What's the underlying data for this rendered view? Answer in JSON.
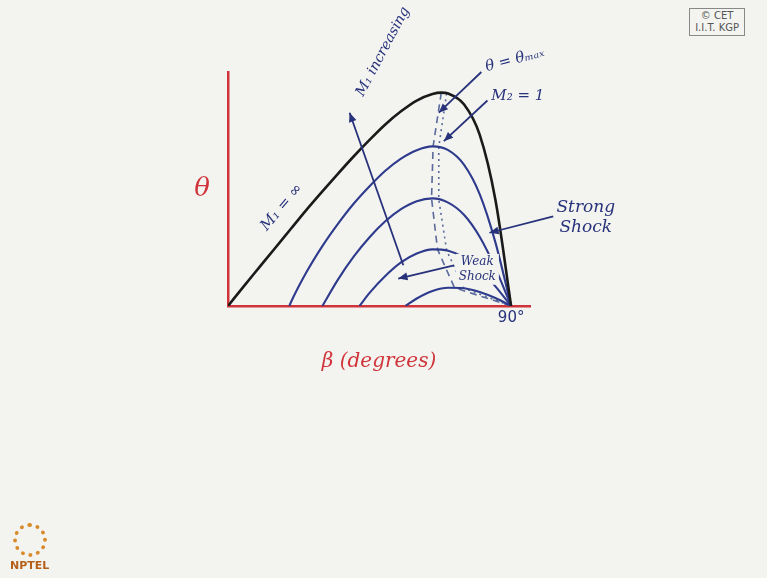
{
  "chart_data": {
    "type": "line",
    "xlabel": "β (degrees)",
    "ylabel": "θ",
    "xlim": [
      0,
      96
    ],
    "xticks": [
      {
        "value": 90,
        "label": "90°"
      }
    ],
    "ylim": [
      0,
      50
    ],
    "yticks": [],
    "tick_labels": "x",
    "grid": false,
    "series": [
      {
        "color": "#1a1a1a",
        "line_style": "solid",
        "x": [
          0,
          5,
          10,
          15,
          20,
          25,
          30,
          35,
          40,
          45,
          50,
          55,
          60,
          65,
          67.8,
          70,
          75,
          80,
          85,
          90
        ],
        "values": [
          0,
          4.2,
          8.3,
          12.4,
          16.5,
          20.6,
          24.5,
          28.3,
          32.0,
          35.5,
          38.8,
          41.6,
          43.9,
          45.3,
          45.6,
          45.4,
          43.1,
          36.6,
          22.7,
          0
        ]
      },
      {
        "color": "#2e3a8c",
        "line_style": "solid",
        "x": [
          19.5,
          20,
          25,
          30,
          35,
          40,
          45,
          50,
          55,
          60,
          65,
          70,
          75,
          80,
          85,
          90
        ],
        "values": [
          0,
          0.8,
          7.3,
          12.8,
          17.6,
          21.9,
          25.6,
          28.9,
          31.5,
          33.3,
          34.1,
          33.3,
          30.2,
          23.9,
          13.6,
          0
        ]
      },
      {
        "color": "#2e3a8c",
        "line_style": "solid",
        "x": [
          30,
          35,
          40,
          45,
          50,
          55,
          60,
          65,
          70,
          75,
          80,
          85,
          90
        ],
        "values": [
          0,
          5.7,
          10.6,
          14.7,
          18.1,
          20.7,
          22.4,
          23.0,
          22.1,
          19.5,
          14.8,
          8.1,
          0
        ]
      },
      {
        "color": "#2e3a8c",
        "line_style": "solid",
        "x": [
          41.8,
          45,
          50,
          55,
          60,
          65,
          70,
          75,
          80,
          85,
          90
        ],
        "values": [
          0,
          2.8,
          6.4,
          9.3,
          11.2,
          12.1,
          11.8,
          10.4,
          7.8,
          4.2,
          0
        ]
      },
      {
        "color": "#2e3a8c",
        "line_style": "solid",
        "x": [
          56.4,
          60,
          65,
          70,
          75,
          80,
          85,
          90
        ],
        "values": [
          0,
          1.6,
          3.2,
          3.9,
          3.8,
          3.0,
          1.7,
          0
        ]
      },
      {
        "color": "#5a6a9a",
        "line_style": "dashed",
        "x": [
          67.8,
          65.2,
          64.7,
          66.6,
          72,
          90
        ],
        "values": [
          45.6,
          34.1,
          23.0,
          12.1,
          3.9,
          0
        ]
      },
      {
        "color": "#5a6a9a",
        "line_style": "dotted",
        "x": [
          69.5,
          67,
          67,
          69.5,
          75,
          90
        ],
        "values": [
          45.4,
          34,
          22.8,
          11.9,
          3.8,
          0
        ]
      }
    ],
    "annotations": [
      "M₁ = ∞",
      "M₁ increasing",
      "θ = θₘₐₓ",
      "M₂ = 1",
      "Weak Shock",
      "Strong Shock"
    ]
  },
  "copyright": [
    "© CET",
    "I.I.T. KGP"
  ],
  "logo": "NPTEL"
}
